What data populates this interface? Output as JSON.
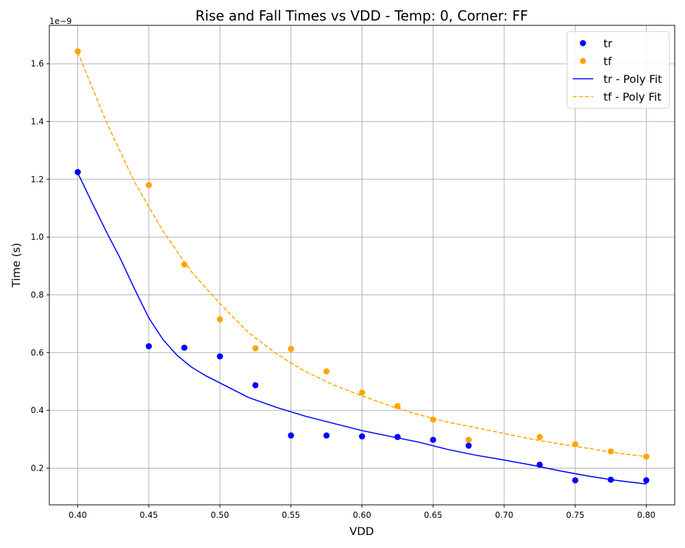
{
  "chart_data": {
    "type": "scatter",
    "title": "Rise and Fall Times vs VDD - Temp: 0, Corner: FF",
    "xlabel": "VDD",
    "ylabel": "Time (s)",
    "y_offset_label": "1e−9",
    "xlim": [
      0.38,
      0.82
    ],
    "ylim": [
      7.3e-11,
      1.733e-09
    ],
    "xticks": [
      0.4,
      0.45,
      0.5,
      0.55,
      0.6,
      0.65,
      0.7,
      0.75,
      0.8
    ],
    "xtick_labels": [
      "0.40",
      "0.45",
      "0.50",
      "0.55",
      "0.60",
      "0.65",
      "0.70",
      "0.75",
      "0.80"
    ],
    "yticks": [
      2e-10,
      4e-10,
      6e-10,
      8e-10,
      1e-09,
      1.2e-09,
      1.4e-09,
      1.6e-09
    ],
    "ytick_labels": [
      "0.2",
      "0.4",
      "0.6",
      "0.8",
      "1.0",
      "1.2",
      "1.4",
      "1.6"
    ],
    "grid": true,
    "legend_position": "top-right",
    "series": [
      {
        "name": "tr",
        "kind": "scatter",
        "color": "#0000ff",
        "x": [
          0.4,
          0.45,
          0.475,
          0.5,
          0.525,
          0.55,
          0.575,
          0.6,
          0.625,
          0.65,
          0.675,
          0.725,
          0.75,
          0.775,
          0.8
        ],
        "y": [
          1.225e-09,
          6.22e-10,
          6.17e-10,
          5.87e-10,
          4.87e-10,
          3.13e-10,
          3.13e-10,
          3.1e-10,
          3.08e-10,
          2.98e-10,
          2.78e-10,
          2.12e-10,
          1.58e-10,
          1.6e-10,
          1.58e-10
        ]
      },
      {
        "name": "tf",
        "kind": "scatter",
        "color": "#ffa500",
        "x": [
          0.4,
          0.45,
          0.475,
          0.5,
          0.525,
          0.55,
          0.575,
          0.6,
          0.625,
          0.65,
          0.675,
          0.725,
          0.75,
          0.775,
          0.8
        ],
        "y": [
          1.643e-09,
          1.18e-09,
          9.05e-10,
          7.15e-10,
          6.15e-10,
          6.13e-10,
          5.35e-10,
          4.62e-10,
          4.15e-10,
          3.68e-10,
          2.98e-10,
          3.08e-10,
          2.83e-10,
          2.58e-10,
          2.4e-10
        ]
      },
      {
        "name": "tr - Poly Fit",
        "kind": "line",
        "style": "solid",
        "color": "#0000ff",
        "x": [
          0.4,
          0.41,
          0.42,
          0.43,
          0.44,
          0.45,
          0.46,
          0.47,
          0.48,
          0.49,
          0.5,
          0.52,
          0.54,
          0.56,
          0.58,
          0.6,
          0.62,
          0.64,
          0.66,
          0.68,
          0.7,
          0.72,
          0.74,
          0.76,
          0.78,
          0.8
        ],
        "y": [
          1.222e-09,
          1.12e-09,
          1.02e-09,
          9.25e-10,
          8.2e-10,
          7.2e-10,
          6.45e-10,
          5.9e-10,
          5.5e-10,
          5.2e-10,
          4.95e-10,
          4.45e-10,
          4.1e-10,
          3.8e-10,
          3.55e-10,
          3.3e-10,
          3.1e-10,
          2.9e-10,
          2.65e-10,
          2.45e-10,
          2.28e-10,
          2.1e-10,
          1.9e-10,
          1.72e-10,
          1.57e-10,
          1.45e-10
        ]
      },
      {
        "name": "tf - Poly Fit",
        "kind": "line",
        "style": "dashed",
        "color": "#ffa500",
        "x": [
          0.4,
          0.42,
          0.44,
          0.46,
          0.48,
          0.5,
          0.52,
          0.54,
          0.56,
          0.58,
          0.6,
          0.62,
          0.64,
          0.66,
          0.68,
          0.7,
          0.72,
          0.74,
          0.76,
          0.78,
          0.8
        ],
        "y": [
          1.64e-09,
          1.4e-09,
          1.19e-09,
          1.02e-09,
          8.8e-10,
          7.7e-10,
          6.7e-10,
          5.95e-10,
          5.35e-10,
          4.88e-10,
          4.5e-10,
          4.15e-10,
          3.85e-10,
          3.6e-10,
          3.4e-10,
          3.2e-10,
          3e-10,
          2.83e-10,
          2.68e-10,
          2.52e-10,
          2.4e-10
        ]
      }
    ]
  }
}
